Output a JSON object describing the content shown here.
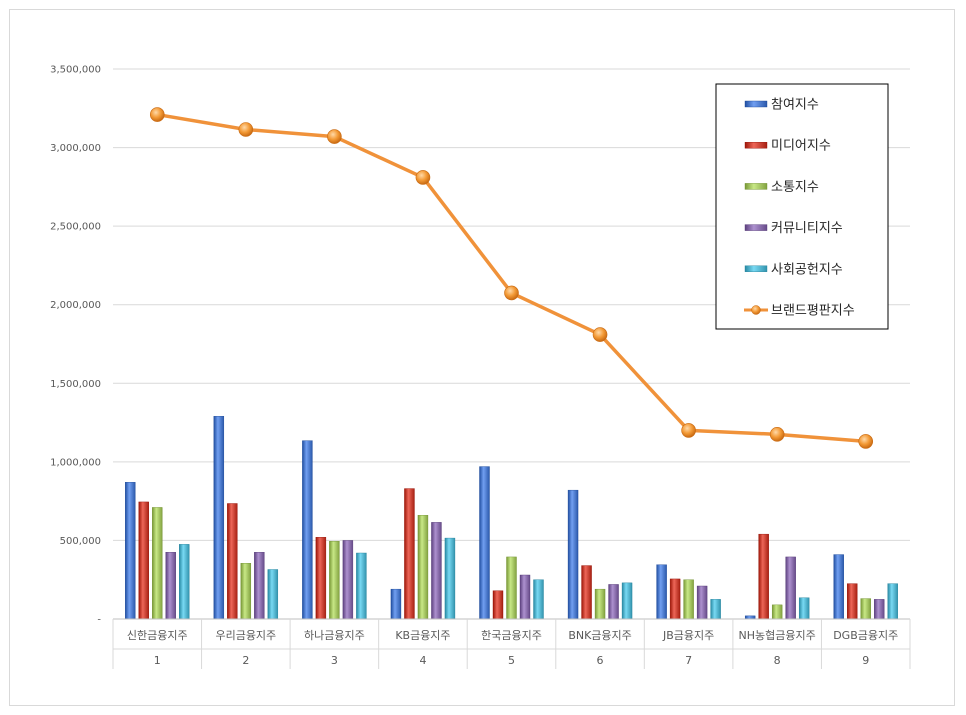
{
  "chart_data": {
    "type": "bar",
    "categories": [
      "신한금융지주",
      "우리금융지주",
      "하나금융지주",
      "KB금융지주",
      "한국금융지주",
      "BNK금융지주",
      "JB금융지주",
      "NH농협금융지주",
      "DGB금융지주"
    ],
    "rank_labels": [
      "1",
      "2",
      "3",
      "4",
      "5",
      "6",
      "7",
      "8",
      "9"
    ],
    "ylim": [
      0,
      3500000
    ],
    "yticks": [
      0,
      500000,
      1000000,
      1500000,
      2000000,
      2500000,
      3000000,
      3500000
    ],
    "ytick_labels": [
      "-",
      "500,000",
      "1,000,000",
      "1,500,000",
      "2,000,000",
      "2,500,000",
      "3,000,000",
      "3,500,000"
    ],
    "grid": true,
    "legend_position": "top-right",
    "series": [
      {
        "name": "참여지수",
        "kind": "bar",
        "color": "#4472c4",
        "values": [
          870000,
          1290000,
          1135000,
          190000,
          970000,
          820000,
          345000,
          20000,
          410000
        ]
      },
      {
        "name": "미디어지수",
        "kind": "bar",
        "color": "#c0392b",
        "values": [
          745000,
          735000,
          520000,
          830000,
          180000,
          340000,
          255000,
          540000,
          225000
        ]
      },
      {
        "name": "소통지수",
        "kind": "bar",
        "color": "#9bbb59",
        "values": [
          710000,
          355000,
          495000,
          660000,
          395000,
          190000,
          250000,
          90000,
          130000
        ]
      },
      {
        "name": "커뮤니티지수",
        "kind": "bar",
        "color": "#8064a2",
        "values": [
          425000,
          425000,
          500000,
          615000,
          280000,
          220000,
          210000,
          395000,
          125000
        ]
      },
      {
        "name": "사회공헌지수",
        "kind": "bar",
        "color": "#4bacc6",
        "values": [
          475000,
          315000,
          420000,
          515000,
          250000,
          230000,
          125000,
          135000,
          225000
        ]
      },
      {
        "name": "브랜드평판지수",
        "kind": "line",
        "color": "#f0923a",
        "values": [
          3210000,
          3115000,
          3070000,
          2810000,
          2075000,
          1810000,
          1200000,
          1175000,
          1130000
        ]
      }
    ]
  }
}
